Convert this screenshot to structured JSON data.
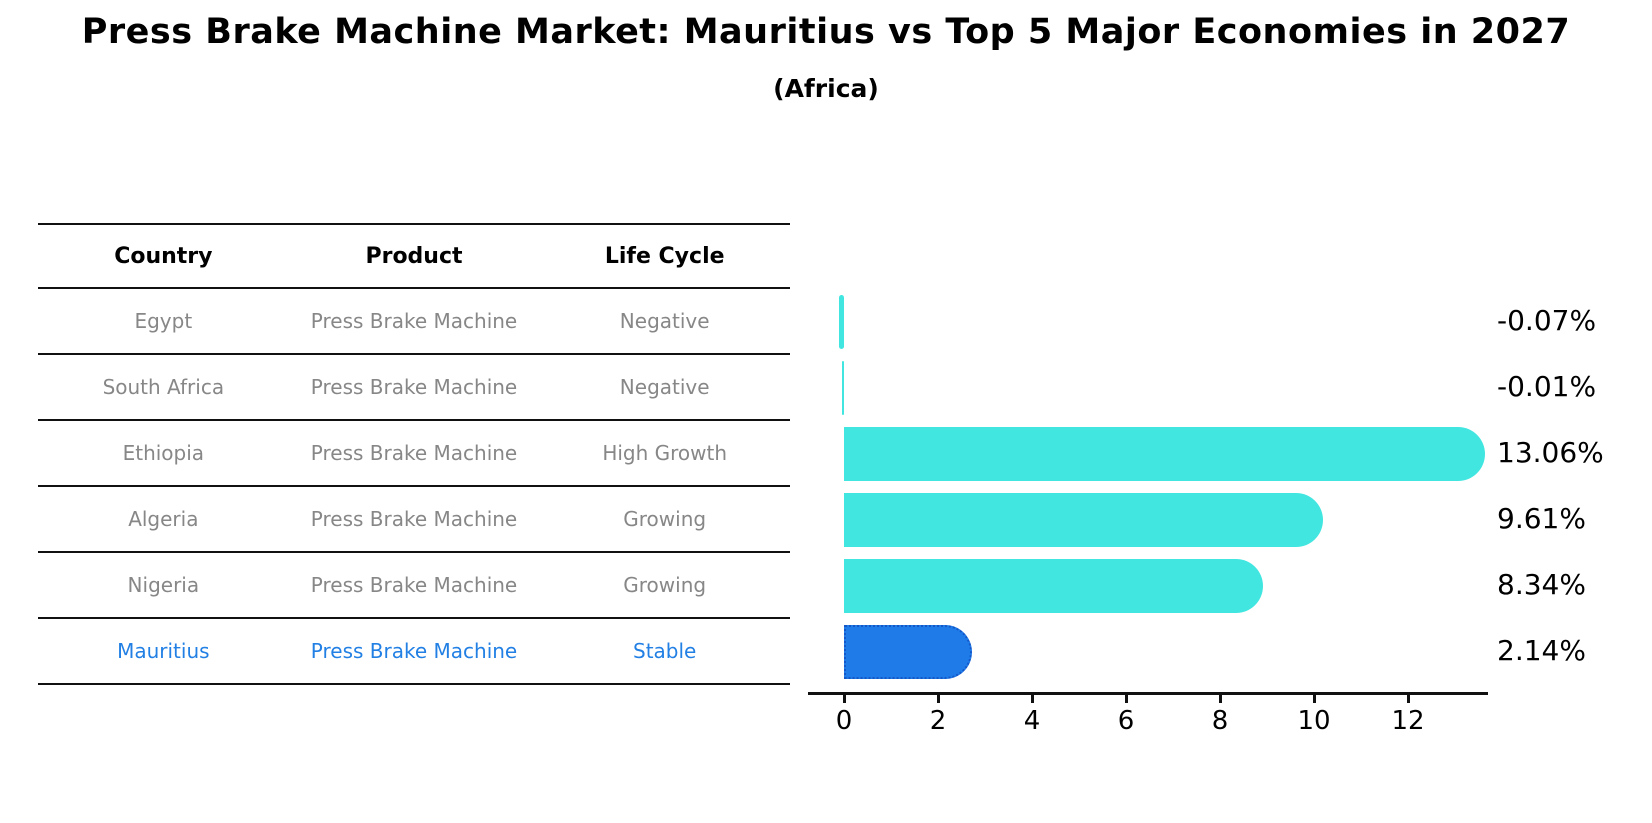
{
  "page": {
    "title": "Press Brake Machine Market: Mauritius vs Top 5 Major Economies in 2027",
    "subtitle": "(Africa)"
  },
  "table": {
    "headers": [
      "Country",
      "Product",
      "Life Cycle"
    ],
    "rows": [
      {
        "country": "Egypt",
        "product": "Press Brake Machine",
        "life_cycle": "Negative",
        "highlight": false
      },
      {
        "country": "South Africa",
        "product": "Press Brake Machine",
        "life_cycle": "Negative",
        "highlight": false
      },
      {
        "country": "Ethiopia",
        "product": "Press Brake Machine",
        "life_cycle": "High Growth",
        "highlight": false
      },
      {
        "country": "Algeria",
        "product": "Press Brake Machine",
        "life_cycle": "Growing",
        "highlight": false
      },
      {
        "country": "Nigeria",
        "product": "Press Brake Machine",
        "life_cycle": "Growing",
        "highlight": true
      }
    ],
    "highlight_row": {
      "country": "Mauritius",
      "product": "Press Brake Machine",
      "life_cycle": "Stable",
      "highlight": true
    }
  },
  "chart_data": {
    "type": "bar",
    "orientation": "horizontal",
    "title": "Press Brake Machine Market: Mauritius vs Top 5 Major Economies in 2027 (Africa)",
    "categories": [
      "Egypt",
      "South Africa",
      "Ethiopia",
      "Algeria",
      "Nigeria",
      "Mauritius"
    ],
    "values": [
      -0.07,
      -0.01,
      13.06,
      9.61,
      8.34,
      2.14
    ],
    "value_labels": [
      "-0.07%",
      "-0.01%",
      "13.06%",
      "9.61%",
      "8.34%",
      "2.14%"
    ],
    "highlight_index": 5,
    "xticks": [
      0,
      2,
      4,
      6,
      8,
      10,
      12
    ],
    "xlim": [
      -0.4,
      13.7
    ],
    "grid": false,
    "legend": false,
    "colors": {
      "bar": "#42E6E0",
      "highlight_bar": "#1E7BE8",
      "highlight_border": "#1457C9",
      "highlight_text": "#2280E4",
      "table_text": "#878787",
      "axis": "#111111"
    }
  }
}
